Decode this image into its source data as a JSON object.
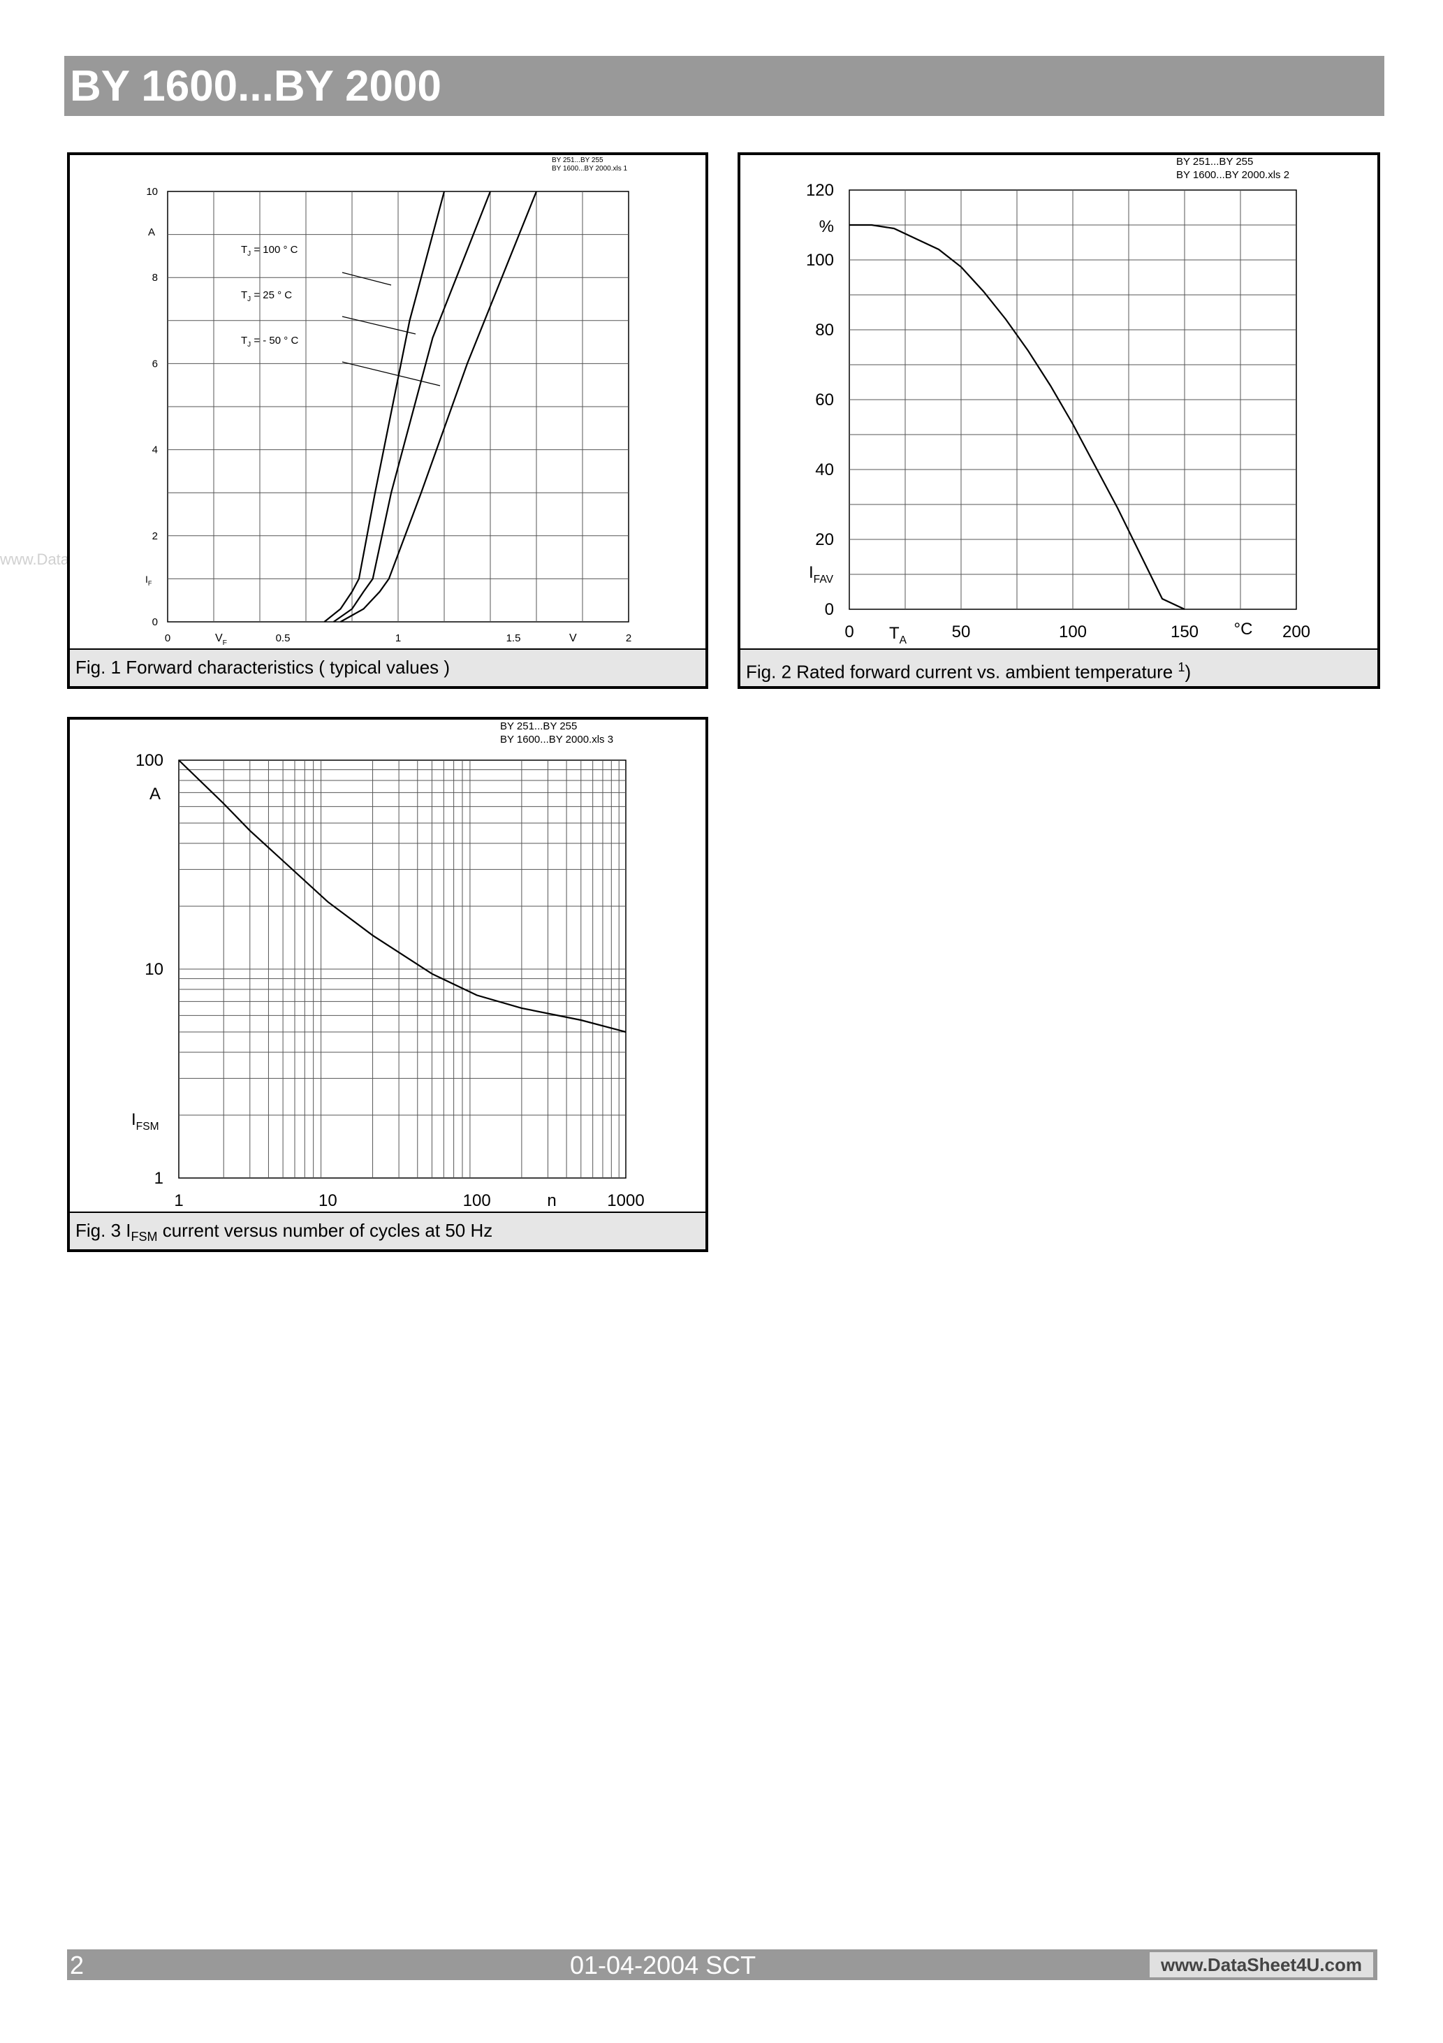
{
  "header": {
    "title": "BY 1600...BY 2000"
  },
  "watermark": "www.DataSheet4U.com",
  "footer": {
    "page": "2",
    "date": "01-04-2004  SCT",
    "url": "www.DataSheet4U.com"
  },
  "chart_data": [
    {
      "type": "line",
      "caption": "Fig. 1 Forward characteristics ( typical values )",
      "file_note": [
        "BY 251...BY 255",
        "BY 1600...BY 2000.xls 1"
      ],
      "xlim": [
        0,
        2
      ],
      "ylim": [
        0,
        10
      ],
      "x_ticks": [
        "0",
        "0.5",
        "1",
        "1.5",
        "2"
      ],
      "y_ticks": [
        "0",
        "2",
        "4",
        "6",
        "8",
        "10"
      ],
      "xlabel": "VF",
      "xunit": "V",
      "ylabel": "IF",
      "yunit": "A",
      "annotations": [
        "TJ =  100 ° C",
        "TJ =    25 ° C",
        "TJ =  - 50 ° C"
      ],
      "series": [
        {
          "name": "TJ = 100 °C",
          "x": [
            0.68,
            0.75,
            0.8,
            0.83,
            0.9,
            1.05,
            1.2
          ],
          "y": [
            0,
            0.3,
            0.7,
            1.0,
            3.0,
            7.0,
            10
          ]
        },
        {
          "name": "TJ = 25 °C",
          "x": [
            0.72,
            0.8,
            0.85,
            0.89,
            0.97,
            1.15,
            1.4
          ],
          "y": [
            0,
            0.3,
            0.7,
            1.0,
            3.0,
            6.6,
            10
          ]
        },
        {
          "name": "TJ = -50 °C",
          "x": [
            0.75,
            0.85,
            0.92,
            0.96,
            1.1,
            1.3,
            1.6
          ],
          "y": [
            0,
            0.3,
            0.7,
            1.0,
            3.0,
            6.0,
            10
          ]
        }
      ]
    },
    {
      "type": "line",
      "caption": "Fig. 2 Rated forward current vs. ambient temperature",
      "caption_sup": "1",
      "caption_tail": ")",
      "file_note": [
        "BY 251...BY 255",
        "BY 1600...BY 2000.xls 2"
      ],
      "xlim": [
        0,
        200
      ],
      "ylim": [
        0,
        120
      ],
      "x_ticks": [
        "0",
        "50",
        "100",
        "150",
        "200"
      ],
      "y_ticks": [
        "0",
        "20",
        "40",
        "60",
        "80",
        "100",
        "120"
      ],
      "xlabel": "TA",
      "xunit": "°C",
      "ylabel": "IFAV",
      "yunit": "%",
      "series": [
        {
          "x": [
            0,
            10,
            20,
            30,
            40,
            50,
            60,
            70,
            80,
            90,
            100,
            110,
            120,
            130,
            140,
            150
          ],
          "y": [
            110,
            110,
            109,
            106,
            103,
            98,
            91,
            83,
            74,
            64,
            53,
            41,
            29,
            16,
            3,
            0
          ]
        }
      ]
    },
    {
      "type": "line",
      "caption": "Fig. 3",
      "caption_sym": "I",
      "caption_sub": "FSM",
      "caption_tail": " current versus number of cycles at 50 Hz",
      "file_note": [
        "BY 251...BY 255",
        "BY 1600...BY 2000.xls 3"
      ],
      "xscale": "log",
      "yscale": "log",
      "xlim": [
        1,
        1000
      ],
      "ylim": [
        1,
        100
      ],
      "x_ticks": [
        "1",
        "10",
        "100",
        "1000"
      ],
      "y_ticks": [
        "1",
        "10",
        "100"
      ],
      "xlabel": "n",
      "ylabel": "IFSM",
      "yunit": "A",
      "series": [
        {
          "x": [
            1,
            2,
            3,
            5,
            10,
            20,
            50,
            100,
            200,
            500,
            1000
          ],
          "y": [
            100,
            62,
            46,
            33,
            21,
            14.5,
            9.5,
            7.5,
            6.5,
            5.7,
            5.0
          ]
        }
      ]
    }
  ]
}
